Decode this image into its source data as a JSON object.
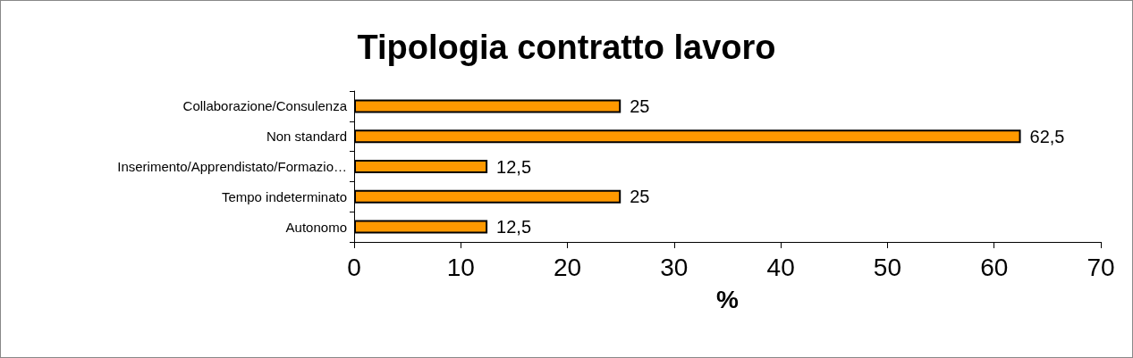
{
  "chart_data": {
    "type": "bar",
    "orientation": "horizontal",
    "title": "Tipologia contratto lavoro",
    "xlabel": "%",
    "categories": [
      "Collaborazione/Consulenza",
      "Non standard",
      "Inserimento/Apprendistato/Formazio…",
      "Tempo indeterminato",
      "Autonomo"
    ],
    "values": [
      25,
      62.5,
      12.5,
      25,
      12.5
    ],
    "value_labels": [
      "25",
      "62,5",
      "12,5",
      "25",
      "12,5"
    ],
    "color": "#ff9900",
    "xlim": [
      0,
      70
    ],
    "xticks": [
      0,
      10,
      20,
      30,
      40,
      50,
      60,
      70
    ],
    "grid": false
  }
}
